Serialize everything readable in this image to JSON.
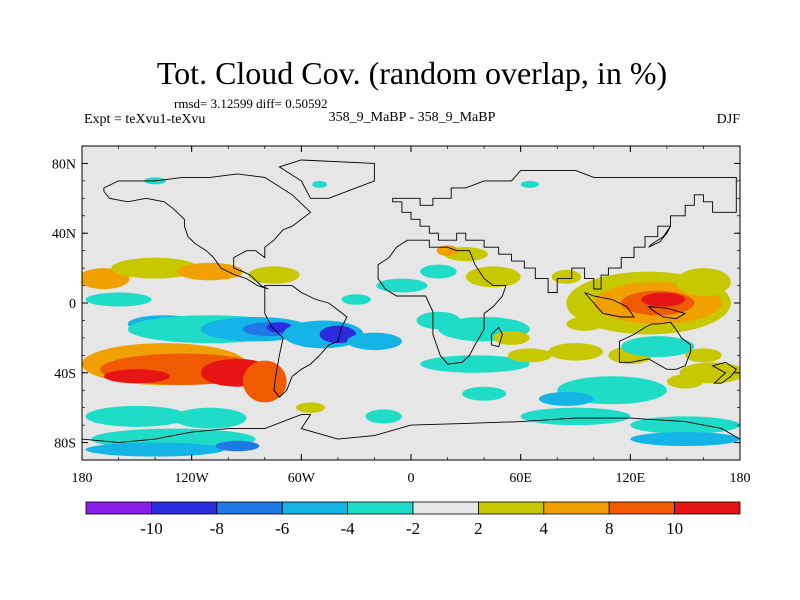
{
  "chart_data": {
    "type": "heatmap",
    "title": "Tot. Cloud Cov. (random overlap, in %)",
    "stats_text": "rmsd= 3.12599 diff= 0.50592",
    "expt_label": "Expt = teXvu1-teXvu",
    "case_label": "358_9_MaBP - 358_9_MaBP",
    "season_label": "DJF",
    "x_ticks": [
      "180",
      "120W",
      "60W",
      "0",
      "60E",
      "120E",
      "180"
    ],
    "y_ticks": [
      "80N",
      "40N",
      "0",
      "40S",
      "80S"
    ],
    "xlim": [
      -180,
      180
    ],
    "ylim": [
      -90,
      90
    ],
    "colorbar": {
      "tick_labels": [
        "-10",
        "-8",
        "-6",
        "-4",
        "-2",
        "2",
        "4",
        "8",
        "10"
      ],
      "colors": [
        "#8a1ee8",
        "#2b2be0",
        "#1e78e6",
        "#14b4e6",
        "#1edcc8",
        "#e6e6e6",
        "#c8c800",
        "#f0a000",
        "#f05a00",
        "#e61414"
      ]
    },
    "background_color": "#e6e6e6",
    "blobs": [
      {
        "lon": -168,
        "lat": 14,
        "rx": 14,
        "ry": 6,
        "level": 7
      },
      {
        "lon": -140,
        "lat": 20,
        "rx": 24,
        "ry": 6,
        "level": 6
      },
      {
        "lon": -110,
        "lat": 18,
        "rx": 18,
        "ry": 5,
        "level": 7
      },
      {
        "lon": -75,
        "lat": 16,
        "rx": 14,
        "ry": 5,
        "level": 6
      },
      {
        "lon": -160,
        "lat": 2,
        "rx": 18,
        "ry": 4,
        "level": 4
      },
      {
        "lon": -135,
        "lat": -12,
        "rx": 20,
        "ry": 5,
        "level": 3
      },
      {
        "lon": -110,
        "lat": -15,
        "rx": 45,
        "ry": 8,
        "level": 4
      },
      {
        "lon": -85,
        "lat": -15,
        "rx": 30,
        "ry": 7,
        "level": 3
      },
      {
        "lon": -78,
        "lat": -15,
        "rx": 14,
        "ry": 4,
        "level": 2
      },
      {
        "lon": -72,
        "lat": -14,
        "rx": 7,
        "ry": 3,
        "level": 1
      },
      {
        "lon": -48,
        "lat": -18,
        "rx": 22,
        "ry": 8,
        "level": 3
      },
      {
        "lon": -40,
        "lat": -18,
        "rx": 10,
        "ry": 5,
        "level": 1
      },
      {
        "lon": -20,
        "lat": -22,
        "rx": 15,
        "ry": 5,
        "level": 3
      },
      {
        "lon": -135,
        "lat": -35,
        "rx": 45,
        "ry": 12,
        "level": 7
      },
      {
        "lon": -125,
        "lat": -38,
        "rx": 45,
        "ry": 9,
        "level": 8
      },
      {
        "lon": -95,
        "lat": -40,
        "rx": 20,
        "ry": 8,
        "level": 9
      },
      {
        "lon": -150,
        "lat": -42,
        "rx": 18,
        "ry": 4,
        "level": 9
      },
      {
        "lon": -80,
        "lat": -45,
        "rx": 12,
        "ry": 12,
        "level": 8
      },
      {
        "lon": -150,
        "lat": -65,
        "rx": 28,
        "ry": 6,
        "level": 4
      },
      {
        "lon": -110,
        "lat": -66,
        "rx": 20,
        "ry": 6,
        "level": 4
      },
      {
        "lon": -130,
        "lat": -78,
        "rx": 45,
        "ry": 6,
        "level": 4
      },
      {
        "lon": -140,
        "lat": -84,
        "rx": 38,
        "ry": 4,
        "level": 3
      },
      {
        "lon": -95,
        "lat": -82,
        "rx": 12,
        "ry": 3,
        "level": 2
      },
      {
        "lon": -15,
        "lat": -65,
        "rx": 10,
        "ry": 4,
        "level": 4
      },
      {
        "lon": -5,
        "lat": 10,
        "rx": 14,
        "ry": 4,
        "level": 4
      },
      {
        "lon": -30,
        "lat": 2,
        "rx": 8,
        "ry": 3,
        "level": 4
      },
      {
        "lon": 40,
        "lat": -15,
        "rx": 25,
        "ry": 7,
        "level": 4
      },
      {
        "lon": 15,
        "lat": -10,
        "rx": 12,
        "ry": 5,
        "level": 4
      },
      {
        "lon": 35,
        "lat": -35,
        "rx": 30,
        "ry": 5,
        "level": 4
      },
      {
        "lon": 55,
        "lat": -20,
        "rx": 10,
        "ry": 4,
        "level": 6
      },
      {
        "lon": 65,
        "lat": -30,
        "rx": 12,
        "ry": 4,
        "level": 6
      },
      {
        "lon": 90,
        "lat": -28,
        "rx": 15,
        "ry": 5,
        "level": 6
      },
      {
        "lon": 95,
        "lat": -12,
        "rx": 10,
        "ry": 4,
        "level": 6
      },
      {
        "lon": 45,
        "lat": 15,
        "rx": 15,
        "ry": 6,
        "level": 6
      },
      {
        "lon": 85,
        "lat": 15,
        "rx": 8,
        "ry": 4,
        "level": 6
      },
      {
        "lon": 30,
        "lat": 28,
        "rx": 12,
        "ry": 4,
        "level": 6
      },
      {
        "lon": 20,
        "lat": 30,
        "rx": 6,
        "ry": 3,
        "level": 7
      },
      {
        "lon": 130,
        "lat": 0,
        "rx": 45,
        "ry": 18,
        "level": 6
      },
      {
        "lon": 135,
        "lat": 0,
        "rx": 35,
        "ry": 12,
        "level": 7
      },
      {
        "lon": 135,
        "lat": 0,
        "rx": 20,
        "ry": 7,
        "level": 8
      },
      {
        "lon": 138,
        "lat": 2,
        "rx": 12,
        "ry": 4,
        "level": 9
      },
      {
        "lon": 160,
        "lat": 12,
        "rx": 15,
        "ry": 8,
        "level": 6
      },
      {
        "lon": 120,
        "lat": -30,
        "rx": 12,
        "ry": 5,
        "level": 6
      },
      {
        "lon": 165,
        "lat": -40,
        "rx": 18,
        "ry": 6,
        "level": 6
      },
      {
        "lon": 160,
        "lat": -30,
        "rx": 10,
        "ry": 4,
        "level": 6
      },
      {
        "lon": 15,
        "lat": 18,
        "rx": 10,
        "ry": 4,
        "level": 4
      },
      {
        "lon": 135,
        "lat": -25,
        "rx": 20,
        "ry": 6,
        "level": 4
      },
      {
        "lon": 110,
        "lat": -50,
        "rx": 30,
        "ry": 8,
        "level": 4
      },
      {
        "lon": 90,
        "lat": -65,
        "rx": 30,
        "ry": 5,
        "level": 4
      },
      {
        "lon": 150,
        "lat": -70,
        "rx": 30,
        "ry": 5,
        "level": 4
      },
      {
        "lon": 150,
        "lat": -78,
        "rx": 30,
        "ry": 4,
        "level": 3
      },
      {
        "lon": 85,
        "lat": -55,
        "rx": 15,
        "ry": 4,
        "level": 3
      },
      {
        "lon": 40,
        "lat": -52,
        "rx": 12,
        "ry": 4,
        "level": 4
      },
      {
        "lon": -140,
        "lat": 70,
        "rx": 6,
        "ry": 2,
        "level": 4
      },
      {
        "lon": -50,
        "lat": 68,
        "rx": 4,
        "ry": 2,
        "level": 4
      },
      {
        "lon": 65,
        "lat": 68,
        "rx": 5,
        "ry": 2,
        "level": 4
      },
      {
        "lon": -55,
        "lat": -60,
        "rx": 8,
        "ry": 3,
        "level": 6
      },
      {
        "lon": 150,
        "lat": -45,
        "rx": 10,
        "ry": 4,
        "level": 6
      }
    ],
    "continents": [
      [
        [
          -10,
          58
        ],
        [
          -5,
          58
        ],
        [
          -5,
          52
        ],
        [
          0,
          52
        ],
        [
          0,
          48
        ],
        [
          5,
          48
        ],
        [
          5,
          44
        ],
        [
          10,
          44
        ],
        [
          10,
          40
        ],
        [
          15,
          40
        ],
        [
          15,
          36
        ],
        [
          25,
          36
        ],
        [
          25,
          40
        ],
        [
          30,
          40
        ],
        [
          30,
          36
        ],
        [
          40,
          36
        ],
        [
          40,
          32
        ],
        [
          48,
          32
        ],
        [
          48,
          28
        ],
        [
          55,
          28
        ],
        [
          55,
          24
        ],
        [
          62,
          24
        ],
        [
          62,
          20
        ],
        [
          68,
          20
        ],
        [
          68,
          14
        ],
        [
          75,
          14
        ],
        [
          75,
          6
        ],
        [
          80,
          6
        ],
        [
          80,
          14
        ],
        [
          88,
          14
        ],
        [
          88,
          20
        ],
        [
          95,
          20
        ],
        [
          95,
          14
        ],
        [
          100,
          14
        ],
        [
          100,
          8
        ],
        [
          104,
          8
        ],
        [
          104,
          16
        ],
        [
          108,
          16
        ],
        [
          108,
          20
        ],
        [
          115,
          20
        ],
        [
          115,
          26
        ],
        [
          122,
          26
        ],
        [
          122,
          32
        ],
        [
          128,
          32
        ],
        [
          128,
          38
        ],
        [
          135,
          38
        ],
        [
          135,
          44
        ],
        [
          142,
          44
        ],
        [
          142,
          50
        ],
        [
          150,
          50
        ],
        [
          150,
          56
        ],
        [
          155,
          56
        ],
        [
          155,
          62
        ],
        [
          160,
          62
        ],
        [
          160,
          58
        ],
        [
          165,
          58
        ],
        [
          165,
          52
        ],
        [
          178,
          52
        ],
        [
          178,
          72
        ],
        [
          100,
          72
        ],
        [
          90,
          76
        ],
        [
          60,
          76
        ],
        [
          55,
          70
        ],
        [
          40,
          70
        ],
        [
          30,
          66
        ],
        [
          22,
          66
        ],
        [
          22,
          60
        ],
        [
          12,
          60
        ],
        [
          12,
          56
        ],
        [
          5,
          56
        ],
        [
          5,
          60
        ],
        [
          -10,
          60
        ]
      ],
      [
        [
          -18,
          14
        ],
        [
          -18,
          22
        ],
        [
          -12,
          26
        ],
        [
          -8,
          32
        ],
        [
          -2,
          36
        ],
        [
          10,
          36
        ],
        [
          10,
          32
        ],
        [
          20,
          32
        ],
        [
          25,
          30
        ],
        [
          32,
          30
        ],
        [
          35,
          22
        ],
        [
          40,
          14
        ],
        [
          45,
          10
        ],
        [
          52,
          10
        ],
        [
          50,
          4
        ],
        [
          45,
          -2
        ],
        [
          40,
          -6
        ],
        [
          40,
          -15
        ],
        [
          35,
          -24
        ],
        [
          32,
          -30
        ],
        [
          28,
          -34
        ],
        [
          20,
          -35
        ],
        [
          16,
          -30
        ],
        [
          12,
          -18
        ],
        [
          12,
          -5
        ],
        [
          8,
          4
        ],
        [
          0,
          4
        ],
        [
          -8,
          4
        ],
        [
          -14,
          8
        ]
      ],
      [
        [
          -80,
          10
        ],
        [
          -72,
          10
        ],
        [
          -65,
          10
        ],
        [
          -60,
          6
        ],
        [
          -52,
          2
        ],
        [
          -45,
          0
        ],
        [
          -40,
          -4
        ],
        [
          -35,
          -8
        ],
        [
          -38,
          -14
        ],
        [
          -40,
          -22
        ],
        [
          -45,
          -24
        ],
        [
          -50,
          -30
        ],
        [
          -55,
          -35
        ],
        [
          -60,
          -38
        ],
        [
          -65,
          -42
        ],
        [
          -68,
          -50
        ],
        [
          -72,
          -54
        ],
        [
          -75,
          -50
        ],
        [
          -74,
          -42
        ],
        [
          -72,
          -30
        ],
        [
          -70,
          -20
        ],
        [
          -76,
          -14
        ],
        [
          -80,
          -6
        ],
        [
          -80,
          0
        ]
      ],
      [
        [
          -168,
          66
        ],
        [
          -160,
          70
        ],
        [
          -140,
          70
        ],
        [
          -125,
          72
        ],
        [
          -110,
          72
        ],
        [
          -95,
          74
        ],
        [
          -80,
          72
        ],
        [
          -65,
          62
        ],
        [
          -55,
          52
        ],
        [
          -65,
          44
        ],
        [
          -70,
          42
        ],
        [
          -75,
          36
        ],
        [
          -80,
          32
        ],
        [
          -80,
          26
        ],
        [
          -85,
          30
        ],
        [
          -90,
          30
        ],
        [
          -97,
          26
        ],
        [
          -97,
          20
        ],
        [
          -92,
          18
        ],
        [
          -88,
          16
        ],
        [
          -82,
          10
        ],
        [
          -78,
          8
        ],
        [
          -84,
          10
        ],
        [
          -90,
          14
        ],
        [
          -96,
          16
        ],
        [
          -104,
          20
        ],
        [
          -108,
          26
        ],
        [
          -112,
          30
        ],
        [
          -118,
          34
        ],
        [
          -122,
          38
        ],
        [
          -124,
          44
        ],
        [
          -124,
          48
        ],
        [
          -130,
          54
        ],
        [
          -135,
          58
        ],
        [
          -145,
          60
        ],
        [
          -155,
          58
        ],
        [
          -165,
          60
        ],
        [
          -168,
          64
        ]
      ],
      [
        [
          -55,
          60
        ],
        [
          -45,
          60
        ],
        [
          -20,
          70
        ],
        [
          -20,
          80
        ],
        [
          -60,
          82
        ],
        [
          -72,
          78
        ],
        [
          -60,
          70
        ]
      ],
      [
        [
          114,
          -22
        ],
        [
          114,
          -34
        ],
        [
          120,
          -34
        ],
        [
          125,
          -33
        ],
        [
          130,
          -32
        ],
        [
          135,
          -35
        ],
        [
          140,
          -38
        ],
        [
          145,
          -38
        ],
        [
          150,
          -36
        ],
        [
          153,
          -28
        ],
        [
          153,
          -24
        ],
        [
          148,
          -20
        ],
        [
          145,
          -15
        ],
        [
          142,
          -11
        ],
        [
          136,
          -12
        ],
        [
          132,
          -12
        ],
        [
          128,
          -14
        ],
        [
          122,
          -18
        ],
        [
          118,
          -20
        ]
      ],
      [
        [
          -180,
          -78
        ],
        [
          -160,
          -80
        ],
        [
          -140,
          -78
        ],
        [
          -120,
          -74
        ],
        [
          -100,
          -72
        ],
        [
          -80,
          -72
        ],
        [
          -60,
          -64
        ],
        [
          -55,
          -64
        ],
        [
          -60,
          -72
        ],
        [
          -40,
          -78
        ],
        [
          -20,
          -76
        ],
        [
          0,
          -70
        ],
        [
          30,
          -69
        ],
        [
          60,
          -68
        ],
        [
          90,
          -66
        ],
        [
          120,
          -66
        ],
        [
          150,
          -68
        ],
        [
          170,
          -72
        ],
        [
          180,
          -78
        ],
        [
          180,
          -90
        ],
        [
          -180,
          -90
        ]
      ],
      [
        [
          165,
          -36
        ],
        [
          172,
          -34
        ],
        [
          178,
          -38
        ],
        [
          175,
          -42
        ],
        [
          170,
          -46
        ],
        [
          166,
          -46
        ],
        [
          172,
          -40
        ]
      ],
      [
        [
          95,
          6
        ],
        [
          105,
          -6
        ],
        [
          115,
          -8
        ],
        [
          122,
          -8
        ],
        [
          118,
          -2
        ],
        [
          110,
          2
        ],
        [
          100,
          4
        ]
      ],
      [
        [
          130,
          -2
        ],
        [
          140,
          -3
        ],
        [
          150,
          -6
        ],
        [
          145,
          -9
        ],
        [
          138,
          -8
        ],
        [
          132,
          -4
        ]
      ],
      [
        [
          48,
          -14
        ],
        [
          50,
          -18
        ],
        [
          48,
          -25
        ],
        [
          44,
          -24
        ],
        [
          44,
          -18
        ]
      ],
      [
        [
          130,
          32
        ],
        [
          136,
          35
        ],
        [
          140,
          40
        ],
        [
          142,
          44
        ],
        [
          138,
          38
        ],
        [
          132,
          34
        ]
      ]
    ]
  }
}
